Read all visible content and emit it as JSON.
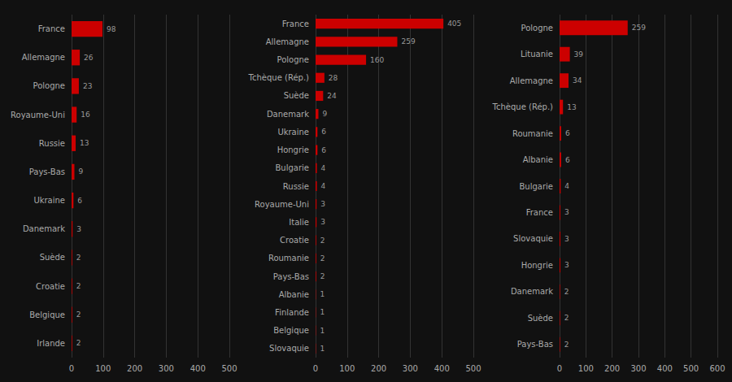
{
  "chart_data": [
    {
      "type": "bar",
      "orientation": "horizontal",
      "categories": [
        "France",
        "Allemagne",
        "Pologne",
        "Royaume-Uni",
        "Russie",
        "Pays-Bas",
        "Ukraine",
        "Danemark",
        "Suède",
        "Croatie",
        "Belgique",
        "Irlande"
      ],
      "values": [
        98,
        26,
        23,
        16,
        13,
        9,
        6,
        3,
        2,
        2,
        2,
        2
      ],
      "color": "#cc0000",
      "xlim": [
        0,
        500
      ],
      "xticks": [
        0,
        100,
        200,
        300,
        400,
        500
      ],
      "grid": true,
      "data_labels": true
    },
    {
      "type": "bar",
      "orientation": "horizontal",
      "categories": [
        "France",
        "Allemagne",
        "Pologne",
        "Tchèque (Rép.)",
        "Suède",
        "Danemark",
        "Ukraine",
        "Hongrie",
        "Bulgarie",
        "Russie",
        "Royaume-Uni",
        "Italie",
        "Croatie",
        "Roumanie",
        "Pays-Bas",
        "Albanie",
        "Finlande",
        "Belgique",
        "Slovaquie"
      ],
      "values": [
        405,
        259,
        160,
        28,
        24,
        9,
        6,
        6,
        4,
        4,
        3,
        3,
        2,
        2,
        2,
        1,
        1,
        1,
        1
      ],
      "color": "#cc0000",
      "xlim": [
        0,
        500
      ],
      "xticks": [
        0,
        100,
        200,
        300,
        400,
        500
      ],
      "grid": true,
      "data_labels": true
    },
    {
      "type": "bar",
      "orientation": "horizontal",
      "categories": [
        "Pologne",
        "Lituanie",
        "Allemagne",
        "Tchèque (Rép.)",
        "Roumanie",
        "Albanie",
        "Bulgarie",
        "France",
        "Slovaquie",
        "Hongrie",
        "Danemark",
        "Suède",
        "Pays-Bas"
      ],
      "values": [
        259,
        39,
        34,
        13,
        6,
        6,
        4,
        3,
        3,
        3,
        2,
        2,
        2
      ],
      "color": "#cc0000",
      "xlim": [
        0,
        600
      ],
      "xticks": [
        0,
        100,
        200,
        300,
        400,
        500,
        600
      ],
      "grid": true,
      "data_labels": true
    }
  ]
}
